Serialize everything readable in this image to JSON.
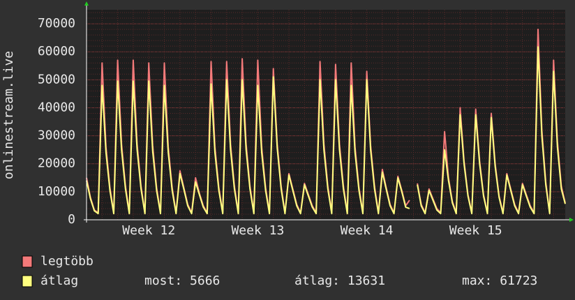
{
  "chart_data": {
    "type": "line",
    "y_label": "onlinestream.live",
    "categories": [
      null,
      null,
      null,
      null,
      null,
      null,
      null,
      null,
      null,
      null,
      null,
      null,
      null,
      null,
      null,
      null,
      "Week 12",
      null,
      null,
      null,
      null,
      null,
      null,
      null,
      null,
      null,
      null,
      null,
      null,
      null,
      null,
      null,
      null,
      null,
      null,
      null,
      null,
      null,
      null,
      null,
      null,
      null,
      null,
      null,
      "Week 13",
      null,
      null,
      null,
      null,
      null,
      null,
      null,
      null,
      null,
      null,
      null,
      null,
      null,
      null,
      null,
      null,
      null,
      null,
      null,
      null,
      null,
      null,
      null,
      null,
      null,
      null,
      null,
      "Week 14",
      null,
      null,
      null,
      null,
      null,
      null,
      null,
      null,
      null,
      null,
      null,
      null,
      null,
      null,
      null,
      null,
      null,
      null,
      null,
      null,
      null,
      null,
      null,
      null,
      null,
      null,
      null,
      "Week 15",
      null,
      null,
      null,
      null,
      null,
      null,
      null,
      null,
      null,
      null,
      null,
      null,
      null,
      null,
      null,
      null,
      null,
      null,
      null,
      null,
      null,
      null,
      null
    ],
    "series": [
      {
        "name": "legtöbb",
        "color": "#f47a7a",
        "values": [
          15000,
          8000,
          3500,
          2500,
          56000,
          26000,
          11500,
          2500,
          57000,
          27000,
          12000,
          2500,
          57000,
          27000,
          12000,
          2500,
          56000,
          26500,
          11500,
          2500,
          56000,
          26000,
          11500,
          2500,
          17500,
          11500,
          5500,
          2500,
          15000,
          9500,
          5000,
          2500,
          56500,
          26000,
          11500,
          2500,
          56500,
          27000,
          12000,
          2500,
          57500,
          27000,
          12000,
          2500,
          57000,
          26000,
          11500,
          2500,
          54000,
          27000,
          12000,
          2500,
          16500,
          11000,
          5500,
          2500,
          13000,
          9000,
          5000,
          2500,
          56500,
          27000,
          12000,
          2500,
          55500,
          27000,
          12000,
          2500,
          56000,
          26000,
          11500,
          2500,
          53000,
          26500,
          12000,
          2500,
          18000,
          11500,
          5500,
          2500,
          15500,
          10500,
          5000,
          7000,
          null,
          13000,
          5500,
          2500,
          11000,
          7500,
          4000,
          2500,
          31500,
          15000,
          6500,
          2500,
          40000,
          21000,
          9000,
          2500,
          39500,
          21000,
          9000,
          2500,
          38000,
          20000,
          8500,
          2500,
          16500,
          11000,
          5500,
          2500,
          13000,
          9000,
          5000,
          2500,
          68000,
          32000,
          13500,
          2500,
          57000,
          28000,
          12000,
          6000
        ]
      },
      {
        "name": "átlag",
        "color": "#ffff80",
        "values": [
          14000,
          7500,
          3200,
          2200,
          48000,
          24000,
          10500,
          2200,
          49500,
          25000,
          11000,
          2200,
          49500,
          25000,
          11000,
          2200,
          49500,
          24500,
          10500,
          2200,
          48000,
          24000,
          10500,
          2200,
          16500,
          11000,
          5000,
          2200,
          13500,
          9000,
          4500,
          2200,
          48500,
          24000,
          10500,
          2200,
          50000,
          25000,
          11000,
          2200,
          50000,
          25000,
          11000,
          2200,
          48000,
          24000,
          10500,
          2200,
          51000,
          25500,
          11000,
          2200,
          16000,
          10500,
          5000,
          2200,
          12500,
          8500,
          4500,
          2200,
          50000,
          25000,
          11000,
          2200,
          50000,
          25000,
          11000,
          2200,
          48000,
          24000,
          10500,
          2200,
          50000,
          25000,
          11000,
          2200,
          17000,
          11000,
          5000,
          2200,
          15000,
          10000,
          4500,
          4000,
          null,
          12500,
          5000,
          2200,
          10500,
          7000,
          3500,
          2200,
          25000,
          14000,
          6000,
          2200,
          37500,
          20000,
          8500,
          2200,
          37500,
          20000,
          8500,
          2200,
          36500,
          19000,
          8000,
          2200,
          16000,
          10500,
          5000,
          2200,
          12500,
          8500,
          4500,
          2200,
          61723,
          30000,
          12500,
          2200,
          53000,
          26000,
          11000,
          5666
        ]
      }
    ],
    "stats": [
      {
        "label": "most:",
        "value": 5666
      },
      {
        "label": "átlag:",
        "value": 13631
      },
      {
        "label": "max:",
        "value": 61723
      }
    ],
    "ylim": [
      0,
      75000
    ],
    "yticks": [
      0,
      10000,
      20000,
      30000,
      40000,
      50000,
      60000,
      70000
    ],
    "grid": true,
    "background": "#1e1e1e"
  }
}
